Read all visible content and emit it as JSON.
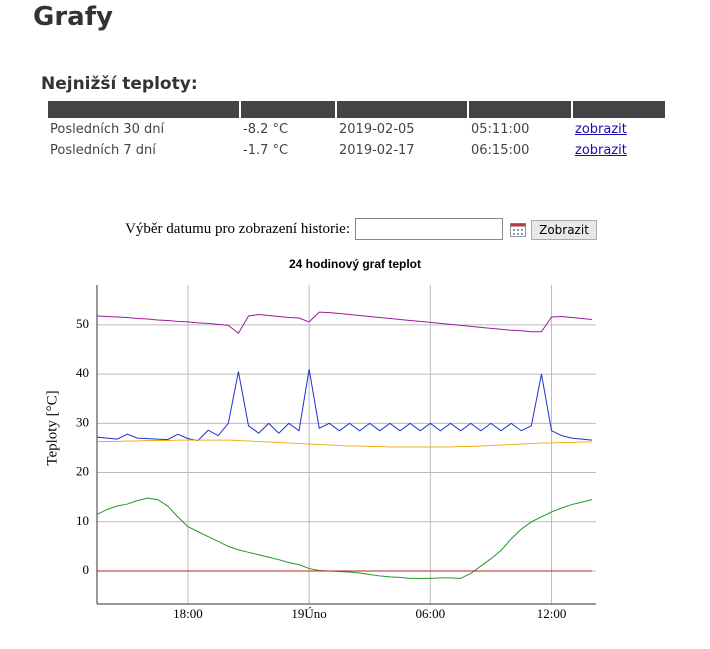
{
  "header": {
    "title": "Grafy",
    "subtitle": "Nejnižší teploty:"
  },
  "table": {
    "rows": [
      [
        "Posledních 30 dní",
        "-8.2 °C",
        "2019-02-05",
        "05:11:00",
        "zobrazit"
      ],
      [
        "Posledních 7 dní",
        "-1.7 °C",
        "2019-02-17",
        "06:15:00",
        "zobrazit"
      ]
    ]
  },
  "form": {
    "label": "Výběr datumu pro zobrazení historie:",
    "button": "Zobrazit"
  },
  "chart_data": {
    "type": "line",
    "title": "24 hodinový graf teplot",
    "y_label": "Teploty [°C]",
    "grid": true,
    "x": [
      13.5,
      14,
      14.5,
      15,
      15.5,
      16,
      16.5,
      17,
      17.5,
      18,
      18.5,
      19,
      19.5,
      20,
      20.5,
      21,
      21.5,
      22,
      22.5,
      23,
      23.5,
      24,
      24.5,
      25,
      25.5,
      26,
      26.5,
      27,
      27.5,
      28,
      28.5,
      29,
      29.5,
      30,
      30.5,
      31,
      31.5,
      32,
      32.5,
      33,
      33.5,
      34,
      34.5,
      35,
      35.5,
      36,
      36.5,
      37,
      37.5,
      38
    ],
    "xlim": [
      13.5,
      38.2
    ],
    "xticks": [
      {
        "value": 18,
        "label": "18:00"
      },
      {
        "value": 24,
        "label": "19Úno"
      },
      {
        "value": 30,
        "label": "06:00"
      },
      {
        "value": 36,
        "label": "12:00"
      }
    ],
    "ylim": [
      -6.7,
      58.1
    ],
    "yticks": [
      0,
      10,
      20,
      30,
      40,
      50
    ],
    "series": [
      {
        "color": "#9b1c9b",
        "values": [
          51.8,
          51.7,
          51.6,
          51.5,
          51.3,
          51.2,
          51.0,
          50.9,
          50.7,
          50.6,
          50.4,
          50.3,
          50.1,
          49.9,
          48.3,
          51.8,
          52.1,
          51.9,
          51.7,
          51.5,
          51.4,
          50.6,
          52.6,
          52.5,
          52.3,
          52.1,
          51.9,
          51.7,
          51.5,
          51.3,
          51.1,
          50.9,
          50.7,
          50.5,
          50.3,
          50.1,
          49.9,
          49.7,
          49.5,
          49.3,
          49.1,
          48.9,
          48.8,
          48.6,
          48.6,
          51.6,
          51.7,
          51.5,
          51.3,
          51.1
        ]
      },
      {
        "color": "#1f2fcf",
        "values": [
          27.2,
          27.0,
          26.8,
          27.8,
          27.0,
          26.9,
          26.8,
          26.7,
          27.8,
          26.9,
          26.5,
          28.6,
          27.5,
          30.0,
          40.5,
          29.5,
          28.0,
          30.0,
          28.0,
          30.0,
          28.5,
          41.0,
          29.0,
          30.0,
          28.5,
          30.0,
          28.5,
          30.0,
          28.5,
          30.0,
          28.5,
          30.0,
          28.5,
          30.0,
          28.5,
          30.0,
          28.5,
          30.0,
          28.5,
          30.0,
          28.5,
          30.0,
          28.5,
          29.5,
          40.0,
          28.5,
          27.5,
          27.0,
          26.8,
          26.6
        ]
      },
      {
        "color": "#f0b020",
        "values": [
          26.3,
          26.3,
          26.3,
          26.4,
          26.4,
          26.5,
          26.5,
          26.5,
          26.6,
          26.6,
          26.6,
          26.6,
          26.6,
          26.6,
          26.5,
          26.4,
          26.3,
          26.2,
          26.1,
          26.0,
          25.9,
          25.8,
          25.7,
          25.6,
          25.5,
          25.4,
          25.4,
          25.3,
          25.3,
          25.2,
          25.2,
          25.2,
          25.2,
          25.2,
          25.2,
          25.2,
          25.3,
          25.3,
          25.4,
          25.5,
          25.6,
          25.7,
          25.8,
          25.9,
          26.0,
          26.0,
          26.1,
          26.1,
          26.2,
          26.2
        ]
      },
      {
        "color": "#229922",
        "values": [
          11.5,
          12.5,
          13.2,
          13.6,
          14.3,
          14.8,
          14.5,
          13.2,
          11.0,
          9.0,
          8.0,
          7.0,
          6.0,
          5.0,
          4.3,
          3.8,
          3.3,
          2.8,
          2.3,
          1.7,
          1.3,
          0.5,
          0.1,
          0.0,
          -0.1,
          -0.2,
          -0.4,
          -0.7,
          -1.0,
          -1.2,
          -1.3,
          -1.5,
          -1.5,
          -1.5,
          -1.4,
          -1.4,
          -1.5,
          -0.5,
          1.0,
          2.5,
          4.2,
          6.5,
          8.5,
          10.0,
          11.0,
          12.0,
          12.8,
          13.5,
          14.0,
          14.5
        ]
      },
      {
        "color": "#c02020",
        "values": [
          0,
          0,
          0,
          0,
          0,
          0,
          0,
          0,
          0,
          0,
          0,
          0,
          0,
          0,
          0,
          0,
          0,
          0,
          0,
          0,
          0,
          0,
          0,
          0,
          0,
          0,
          0,
          0,
          0,
          0,
          0,
          0,
          0,
          0,
          0,
          0,
          0,
          0,
          0,
          0,
          0,
          0,
          0,
          0,
          0,
          0,
          0,
          0,
          0,
          0
        ]
      }
    ]
  }
}
